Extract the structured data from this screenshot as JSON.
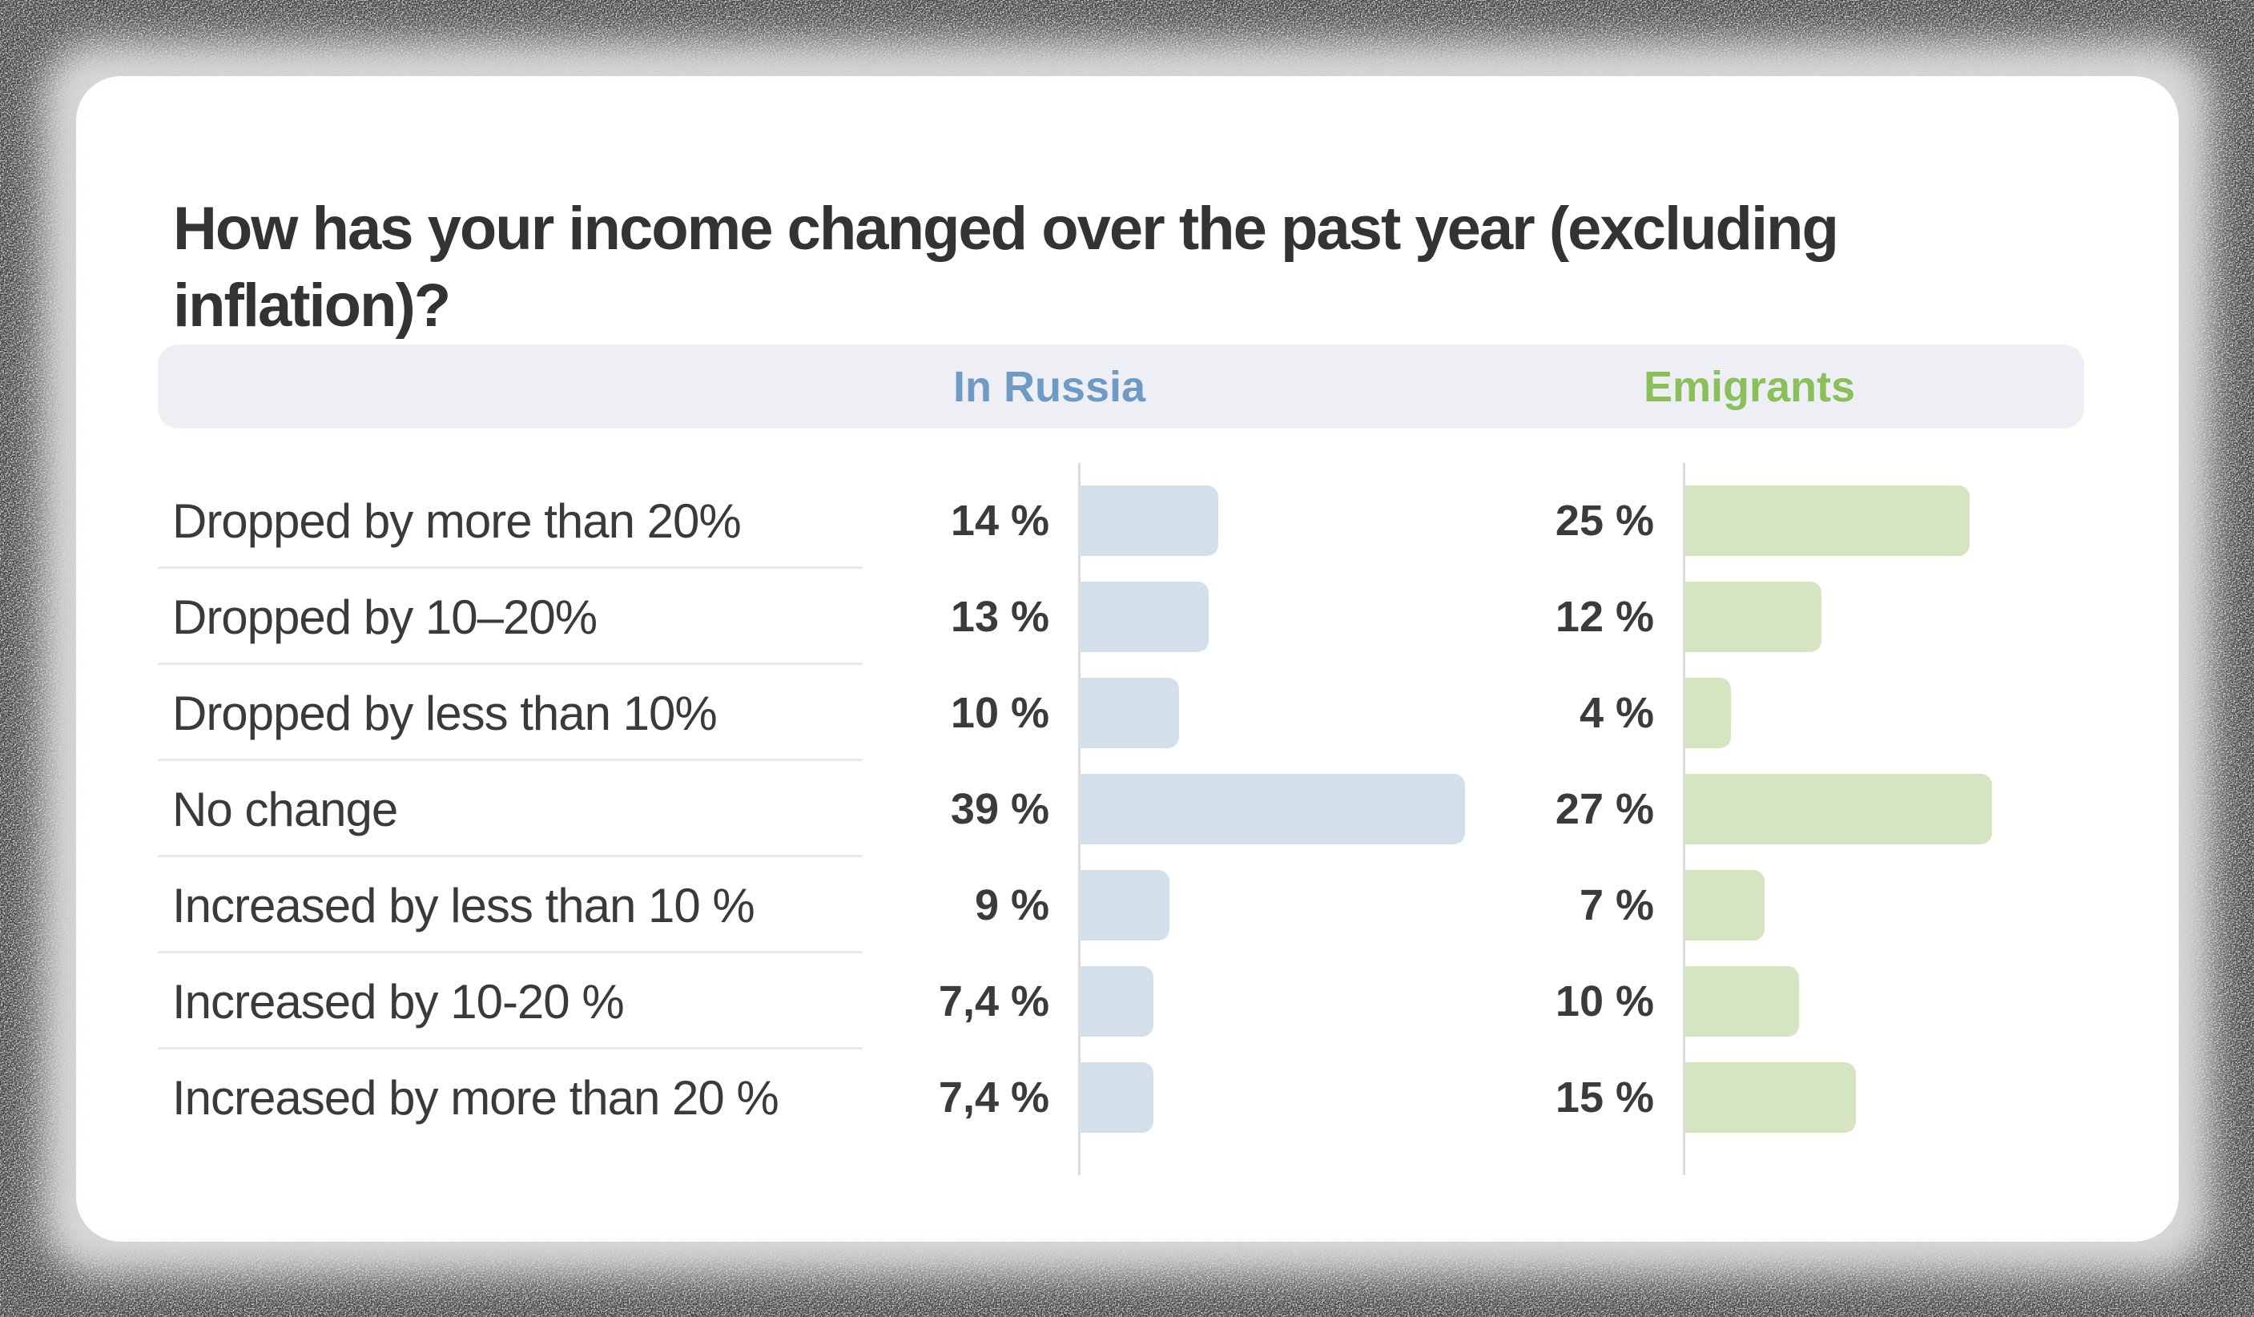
{
  "page": {
    "background": "#d7d7d7",
    "card_background": "#ffffff"
  },
  "header": {
    "title": "How has your income changed over the past year (excluding inflation)?"
  },
  "legend": {
    "background": "#edeff4",
    "columns": [
      {
        "label": "In Russia",
        "color": "#6f9ac4"
      },
      {
        "label": "Emigrants",
        "color": "#8abf5a"
      }
    ]
  },
  "chart_data": {
    "type": "bar",
    "orientation": "horizontal",
    "title": "How has your income changed over the past year (excluding inflation)?",
    "legend_position": "top",
    "grid": false,
    "value_suffix": " %",
    "categories": [
      "Dropped by more than 20%",
      "Dropped by 10–20%",
      "Dropped by less than 10%",
      "No change",
      "Increased by less than 10 %",
      "Increased by 10-20 %",
      "Increased by more than 20 %"
    ],
    "series": [
      {
        "name": "In Russia",
        "color": "#d3dfea",
        "label_color": "#6f9ac4",
        "axis_max": 39,
        "values": [
          14,
          13,
          10,
          39,
          9,
          7.4,
          7.4
        ],
        "value_labels": [
          "14 %",
          "13 %",
          "10 %",
          "39 %",
          "9 %",
          "7,4 %",
          "7,4 %"
        ]
      },
      {
        "name": "Emigrants",
        "color": "#d6e5c1",
        "label_color": "#8abf5a",
        "axis_max": 27,
        "values": [
          25,
          12,
          4,
          27,
          7,
          10,
          15
        ],
        "value_labels": [
          "25 %",
          "12 %",
          "4 %",
          "27 %",
          "7 %",
          "10 %",
          "15 %"
        ]
      }
    ]
  }
}
